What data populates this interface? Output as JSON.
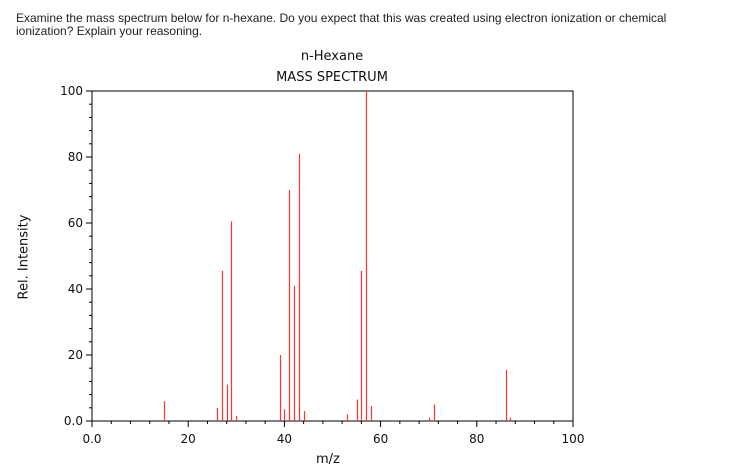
{
  "question": {
    "line1": "Examine the mass spectrum below for n-hexane. Do you expect that this was created using electron ionization or chemical",
    "line2": "ionization? Explain your reasoning."
  },
  "chart_data": {
    "type": "bar",
    "title": "n-Hexane",
    "subtitle": "MASS SPECTRUM",
    "xlabel": "m/z",
    "ylabel": "Rel. Intensity",
    "xlim": [
      0,
      100
    ],
    "ylim": [
      0,
      100
    ],
    "x_ticks": [
      "0.0",
      "20",
      "40",
      "60",
      "80",
      "100"
    ],
    "x_tick_values": [
      0,
      20,
      40,
      60,
      80,
      100
    ],
    "y_ticks": [
      "0.0",
      "20",
      "40",
      "60",
      "80",
      "100"
    ],
    "y_tick_values": [
      0,
      20,
      40,
      60,
      80,
      100
    ],
    "bar_color": "#ff3333",
    "x": [
      15,
      26,
      27,
      28,
      29,
      30,
      39,
      40,
      41,
      42,
      43,
      44,
      53,
      55,
      56,
      57,
      58,
      70,
      71,
      86,
      87
    ],
    "values": [
      6,
      4,
      45.5,
      11,
      60.5,
      1.5,
      20,
      3.5,
      70,
      41,
      81,
      3,
      2,
      6.5,
      45.5,
      100,
      4.5,
      1,
      5,
      15.5,
      1
    ]
  }
}
